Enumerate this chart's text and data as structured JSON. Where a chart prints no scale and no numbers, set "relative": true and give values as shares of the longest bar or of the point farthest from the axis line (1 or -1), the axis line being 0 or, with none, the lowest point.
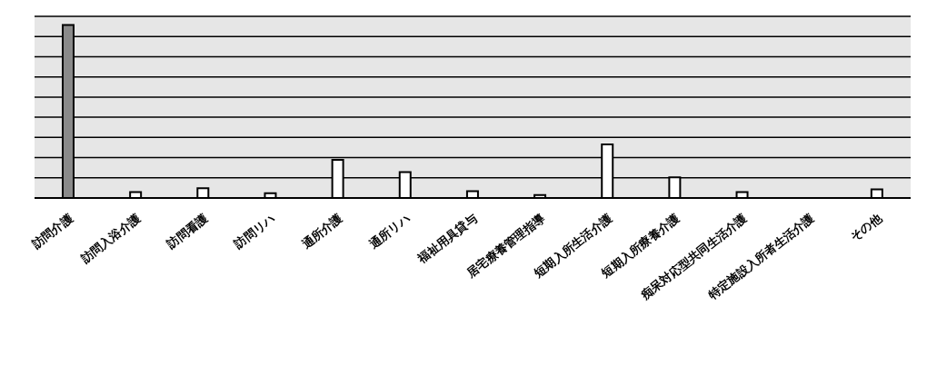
{
  "chart_data": {
    "type": "bar",
    "relative": true,
    "grid": "y",
    "categories": [
      "訪問介護",
      "訪問入浴介護",
      "訪問看護",
      "訪問リハ",
      "通所介護",
      "通所リハ",
      "福祉用具貸与",
      "居宅療養管理指導",
      "短期入所生活介護",
      "短期入所療養介護",
      "痴呆対応型共同生活介護",
      "特定施設入所者生活介護",
      "その他"
    ],
    "values": [
      1,
      0.034,
      0.056,
      0.028,
      0.22,
      0.15,
      0.04,
      0.017,
      0.31,
      0.12,
      0.034,
      0,
      0.05
    ],
    "colors": [
      "#8a8a8a",
      "#ffffff",
      "#ffffff",
      "#ffffff",
      "#ffffff",
      "#ffffff",
      "#ffffff",
      "#ffffff",
      "#ffffff",
      "#ffffff",
      "#ffffff",
      "#ffffff",
      "#ffffff"
    ]
  }
}
